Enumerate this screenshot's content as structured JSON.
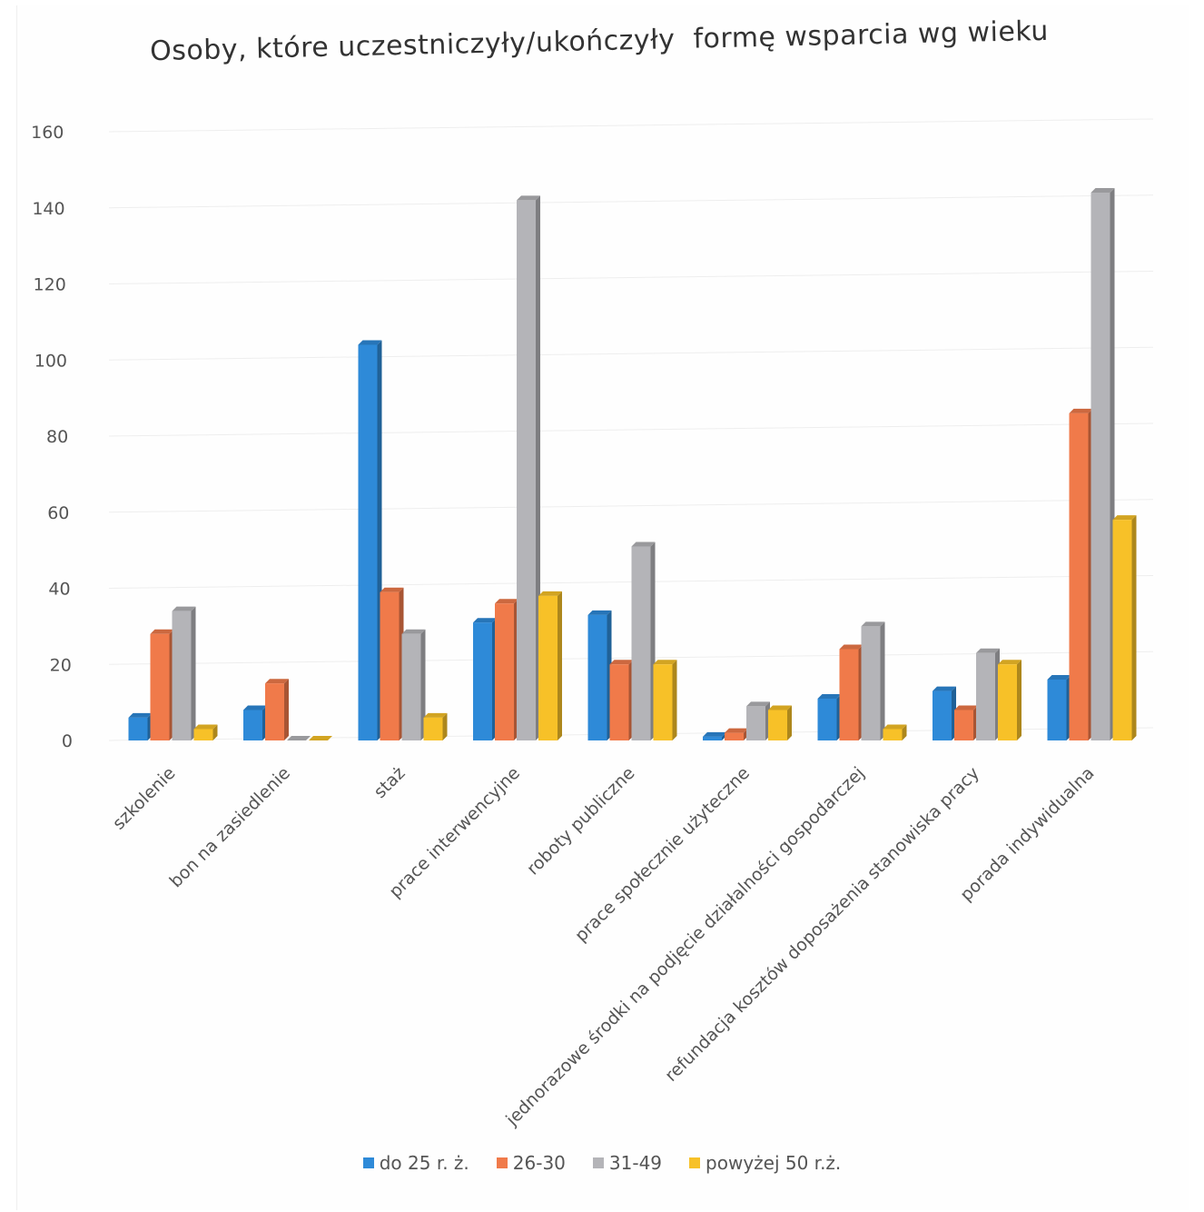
{
  "chart_data": {
    "type": "bar",
    "title": "Osoby, które uczestniczyły/ukończyły  formę wsparcia wg wieku",
    "categories": [
      "szkolenie",
      "bon na zasiedlenie",
      "staż",
      "prace interwencyjne",
      "roboty publiczne",
      "prace społecznie użyteczne",
      "jednorazowe środki na podjęcie działalności gospodarczej",
      "refundacja kosztów doposażenia stanowiska pracy",
      "porada indywidualna"
    ],
    "series": [
      {
        "name": "do 25 r. ż.",
        "color": "#2e8ad8",
        "values": [
          6,
          8,
          104,
          31,
          33,
          1,
          11,
          13,
          16
        ]
      },
      {
        "name": "26-30",
        "color": "#f07a4a",
        "values": [
          28,
          15,
          39,
          36,
          20,
          2,
          24,
          8,
          86
        ]
      },
      {
        "name": "31-49",
        "color": "#b4b4b8",
        "values": [
          34,
          0,
          28,
          142,
          51,
          9,
          30,
          23,
          144
        ]
      },
      {
        "name": "powyżej 50 r.ż.",
        "color": "#f7c128",
        "values": [
          3,
          0,
          6,
          38,
          20,
          8,
          3,
          20,
          58
        ]
      }
    ],
    "yticks": [
      "0",
      "20",
      "40",
      "60",
      "80",
      "100",
      "120",
      "140",
      "160"
    ],
    "ylim": [
      0,
      160
    ],
    "grid": true,
    "legend_position": "bottom"
  }
}
